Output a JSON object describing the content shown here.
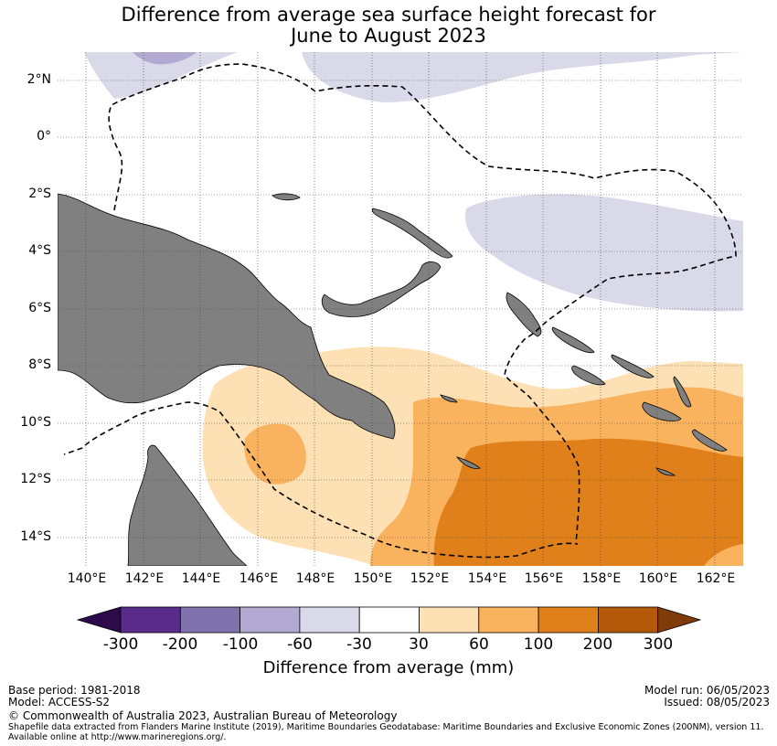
{
  "title": {
    "line1": "Difference from average sea surface height forecast for",
    "line2": "June to August 2023"
  },
  "axes": {
    "lat_labels": [
      "2°N",
      "0°",
      "2°S",
      "4°S",
      "6°S",
      "8°S",
      "10°S",
      "12°S",
      "14°S"
    ],
    "lon_labels": [
      "140°E",
      "142°E",
      "144°E",
      "146°E",
      "148°E",
      "150°E",
      "152°E",
      "154°E",
      "156°E",
      "158°E",
      "160°E",
      "162°E"
    ]
  },
  "colorbar": {
    "label": "Difference from average (mm)",
    "ticks": [
      "-300",
      "-200",
      "-100",
      "-60",
      "-30",
      "30",
      "60",
      "100",
      "200",
      "300"
    ],
    "colors": [
      "#2d0a4b",
      "#5b2b8c",
      "#8072ad",
      "#b2aad3",
      "#d9d9ea",
      "#ffffff",
      "#fde0b3",
      "#f9b25e",
      "#e0801b",
      "#b4580a",
      "#7f3b08"
    ]
  },
  "footer": {
    "base_period": "Base period: 1981-2018",
    "model": "Model: ACCESS-S2",
    "model_run": "Model run: 06/05/2023",
    "issued": "Issued: 08/05/2023",
    "copyright": "© Commonwealth of Australia 2023, Australian Bureau of Meteorology",
    "shapefile_line1": "Shapefile data extracted from Flanders Marine Institute (2019), Maritime Boundaries Geodatabase: Maritime Boundaries and Exclusive Economic Zones (200NM), version 11.",
    "shapefile_line2": "Available online at http://www.marineregions.org/."
  }
}
